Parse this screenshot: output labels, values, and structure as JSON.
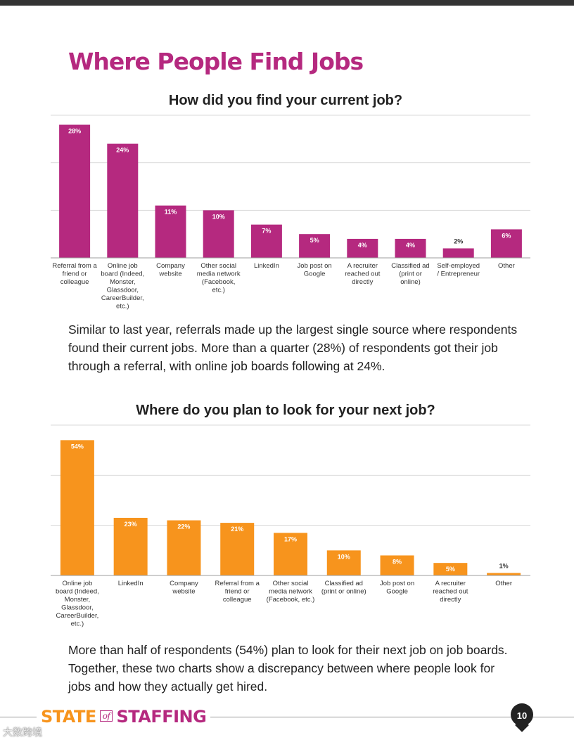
{
  "page": {
    "title": "Where People Find Jobs",
    "page_number": "10",
    "footer": {
      "brand_word1": "STATE",
      "brand_of": "of",
      "brand_word2": "STAFFING"
    },
    "watermark": "大数跨境"
  },
  "paragraphs": {
    "p1": "Similar to last year, referrals made up the largest single source where respondents found their current jobs. More than a quarter (28%) of respondents got their job through a referral, with online job boards following at 24%.",
    "p2": "More than half of respondents (54%) plan to look for their next job on job boards. Together, these two charts show a discrepancy between where people look for jobs and how they actually get hired."
  },
  "colors": {
    "magenta": "#b5297f",
    "orange": "#f7941d",
    "grid": "#d9d9d9",
    "axis": "#9e9e9e"
  },
  "chart_data": [
    {
      "type": "bar",
      "title": "How did you find your current job?",
      "categories": [
        [
          "Referral from a",
          "friend or",
          "colleague"
        ],
        [
          "Online job",
          "board (Indeed,",
          "Monster,",
          "Glassdoor,",
          "CareerBuilder,",
          "etc.)"
        ],
        [
          "Company",
          "website"
        ],
        [
          "Other social",
          "media network",
          "(Facebook,",
          "etc.)"
        ],
        [
          "LinkedIn"
        ],
        [
          "Job post on",
          "Google"
        ],
        [
          "A recruiter",
          "reached out",
          "directly"
        ],
        [
          "Classified ad",
          "(print or",
          "online)"
        ],
        [
          "Self-employed",
          "/ Entrepreneur"
        ],
        [
          "Other"
        ]
      ],
      "values": [
        28,
        24,
        11,
        10,
        7,
        5,
        4,
        4,
        2,
        6
      ],
      "labels": [
        "28%",
        "24%",
        "11%",
        "10%",
        "7%",
        "5%",
        "4%",
        "4%",
        "2%",
        "6%"
      ],
      "ylim": [
        0,
        30
      ],
      "grid_step": 10,
      "xlabel": "",
      "ylabel": "",
      "color": "#b5297f"
    },
    {
      "type": "bar",
      "title": "Where do you plan to look for your next job?",
      "categories": [
        [
          "Online job",
          "board (Indeed,",
          "Monster,",
          "Glassdoor,",
          "CareerBuilder,",
          "etc.)"
        ],
        [
          "LinkedIn"
        ],
        [
          "Company",
          "website"
        ],
        [
          "Referral from a",
          "friend or",
          "colleague"
        ],
        [
          "Other social",
          "media network",
          "(Facebook, etc.)"
        ],
        [
          "Classified ad",
          "(print or online)"
        ],
        [
          "Job post on",
          "Google"
        ],
        [
          "A recruiter",
          "reached out",
          "directly"
        ],
        [
          "Other"
        ]
      ],
      "values": [
        54,
        23,
        22,
        21,
        17,
        10,
        8,
        5,
        1
      ],
      "labels": [
        "54%",
        "23%",
        "22%",
        "21%",
        "17%",
        "10%",
        "8%",
        "5%",
        "1%"
      ],
      "ylim": [
        0,
        60
      ],
      "grid_step": 20,
      "xlabel": "",
      "ylabel": "",
      "color": "#f7941d"
    }
  ]
}
